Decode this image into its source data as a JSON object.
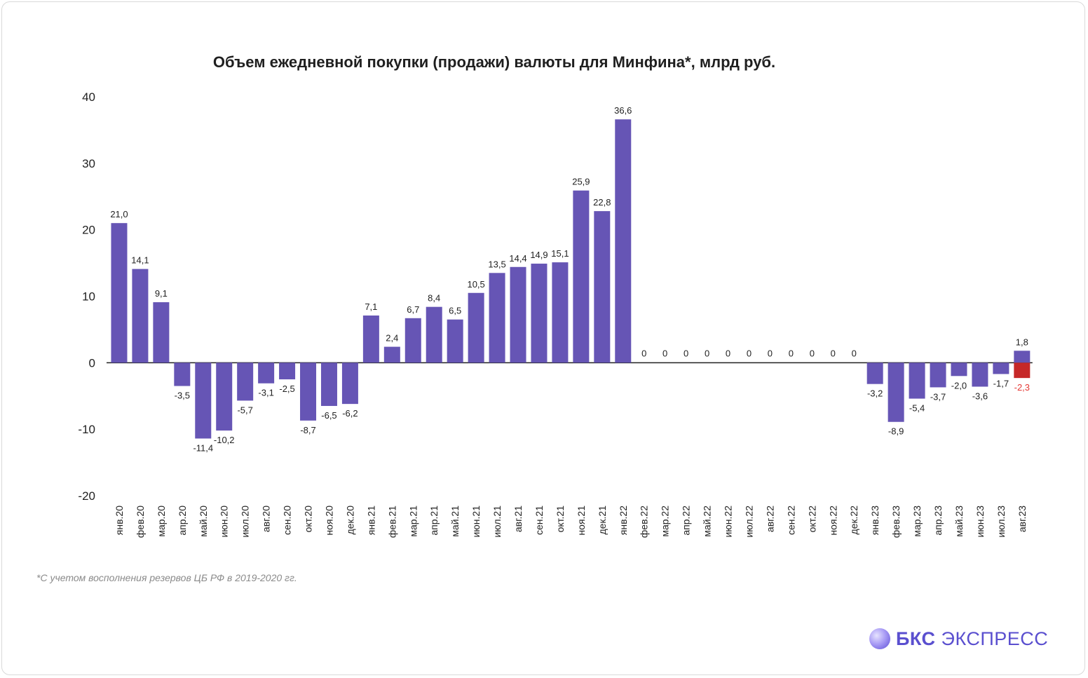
{
  "chart_data": {
    "type": "bar",
    "title": "Объем ежедневной покупки (продажи) валюты для Минфина*, млрд руб.",
    "ylim": [
      -20,
      40
    ],
    "yticks": [
      "40",
      "30",
      "20",
      "10",
      "0",
      "-10",
      "-20"
    ],
    "categories": [
      "янв.20",
      "фев.20",
      "мар.20",
      "апр.20",
      "май.20",
      "июн.20",
      "июл.20",
      "авг.20",
      "сен.20",
      "окт.20",
      "ноя.20",
      "дек.20",
      "янв.21",
      "фев.21",
      "мар.21",
      "апр.21",
      "май.21",
      "июн.21",
      "июл.21",
      "авг.21",
      "сен.21",
      "окт.21",
      "ноя.21",
      "дек.21",
      "янв.22",
      "фев.22",
      "мар.22",
      "апр.22",
      "май.22",
      "июн.22",
      "июл.22",
      "авг.22",
      "сен.22",
      "окт.22",
      "ноя.22",
      "дек.22",
      "янв.23",
      "фев.23",
      "мар.23",
      "апр.23",
      "май.23",
      "июн.23",
      "июл.23",
      "авг.23"
    ],
    "values": [
      21.0,
      14.1,
      9.1,
      -3.5,
      -11.4,
      -10.2,
      -5.7,
      -3.1,
      -2.5,
      -8.7,
      -6.5,
      -6.2,
      7.1,
      2.4,
      6.7,
      8.4,
      6.5,
      10.5,
      13.5,
      14.4,
      14.9,
      15.1,
      25.9,
      22.8,
      36.6,
      0,
      0,
      0,
      0,
      0,
      0,
      0,
      0,
      0,
      0,
      0,
      -3.2,
      -8.9,
      -5.4,
      -3.7,
      -2.0,
      -3.6,
      -1.7,
      1.8
    ],
    "labels": [
      "21,0",
      "14,1",
      "9,1",
      "-3,5",
      "-11,4",
      "-10,2",
      "-5,7",
      "-3,1",
      "-2,5",
      "-8,7",
      "-6,5",
      "-6,2",
      "7,1",
      "2,4",
      "6,7",
      "8,4",
      "6,5",
      "10,5",
      "13,5",
      "14,4",
      "14,9",
      "15,1",
      "25,9",
      "22,8",
      "36,6",
      "0",
      "0",
      "0",
      "0",
      "0",
      "0",
      "0",
      "0",
      "0",
      "0",
      "0",
      "-3,2",
      "-8,9",
      "-5,4",
      "-3,7",
      "-2,0",
      "-3,6",
      "-1,7",
      "1,8"
    ],
    "extra_bar": {
      "category": "авг.23",
      "value": -2.3,
      "label": "-2,3",
      "color": "#c62828"
    },
    "bar_color": "#6655b5",
    "grid": false,
    "legend": "none"
  },
  "footnote": "*С учетом восполнения резервов ЦБ РФ в 2019-2020 гг.",
  "brand": {
    "bold": "БКС",
    "rest": "ЭКСПРЕСС",
    "color": "#5a4fcf"
  }
}
